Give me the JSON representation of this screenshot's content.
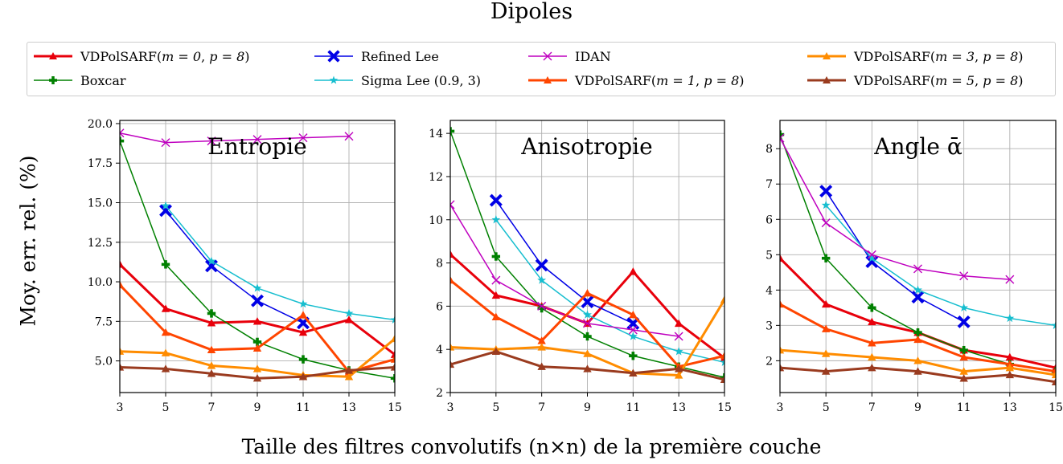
{
  "figure": {
    "title": "Dipoles",
    "ylabel": "Moy. err. rel. (%)",
    "xlabel": "Taille des filtres convolutifs (n×n) de la première couche"
  },
  "legend": [
    {
      "key": "vdp0",
      "label": "VDPolSARF(m = 0, p = 8)",
      "color": "#e8000b",
      "marker": "triangle",
      "width": 3
    },
    {
      "key": "boxcar",
      "label": "Boxcar",
      "color": "#008000",
      "marker": "plus",
      "width": 1.5
    },
    {
      "key": "refined",
      "label": "Refined Lee",
      "color": "#0000e6",
      "marker": "xfilled",
      "width": 1.5
    },
    {
      "key": "sigma",
      "label": "Sigma Lee (0.9, 3)",
      "color": "#17becf",
      "marker": "star",
      "width": 1.5
    },
    {
      "key": "idan",
      "label": "IDAN",
      "color": "#bf00bf",
      "marker": "x",
      "width": 1.5
    },
    {
      "key": "vdp1",
      "label": "VDPolSARF(m = 1, p = 8)",
      "color": "#ff4500",
      "marker": "triangle",
      "width": 3
    },
    {
      "key": "vdp3",
      "label": "VDPolSARF(m = 3, p = 8)",
      "color": "#ff8c00",
      "marker": "triangle",
      "width": 3
    },
    {
      "key": "vdp5",
      "label": "VDPolSARF(m = 5, p = 8)",
      "color": "#9a3b1f",
      "marker": "triangle",
      "width": 3
    }
  ],
  "chart_data": [
    {
      "type": "line",
      "title": "Entropie",
      "xlabel": "Taille des filtres convolutifs (n×n) de la première couche",
      "ylabel": "Moy. err. rel. (%)",
      "x": [
        3,
        5,
        7,
        9,
        11,
        13,
        15
      ],
      "xlim": [
        3,
        15
      ],
      "ylim": [
        3.0,
        20.2
      ],
      "yticks": [
        5.0,
        7.5,
        10.0,
        12.5,
        15.0,
        17.5,
        20.0
      ],
      "ytick_labels": [
        "5.0",
        "7.5",
        "10.0",
        "12.5",
        "15.0",
        "17.5",
        "20.0"
      ],
      "grid": true,
      "series": [
        {
          "name": "VDPolSARF(m = 0, p = 8)",
          "values": [
            11.1,
            8.3,
            7.4,
            7.5,
            6.8,
            7.6,
            5.4
          ]
        },
        {
          "name": "Boxcar",
          "values": [
            18.9,
            11.1,
            8.0,
            6.2,
            5.1,
            4.4,
            3.9
          ]
        },
        {
          "name": "Refined Lee",
          "values": [
            null,
            14.5,
            11.0,
            8.8,
            7.4,
            null,
            null
          ]
        },
        {
          "name": "Sigma Lee (0.9, 3)",
          "values": [
            null,
            14.8,
            11.3,
            9.6,
            8.6,
            8.0,
            7.6
          ]
        },
        {
          "name": "IDAN",
          "values": [
            19.4,
            18.8,
            18.9,
            19.0,
            19.1,
            19.2,
            null
          ]
        },
        {
          "name": "VDPolSARF(m = 1, p = 8)",
          "values": [
            9.8,
            6.8,
            5.7,
            5.8,
            7.9,
            4.3,
            5.1
          ]
        },
        {
          "name": "VDPolSARF(m = 3, p = 8)",
          "values": [
            5.6,
            5.5,
            4.7,
            4.5,
            4.1,
            4.0,
            6.4
          ]
        },
        {
          "name": "VDPolSARF(m = 5, p = 8)",
          "values": [
            4.6,
            4.5,
            4.2,
            3.9,
            4.0,
            4.4,
            4.6
          ]
        }
      ]
    },
    {
      "type": "line",
      "title": "Anisotropie",
      "x": [
        3,
        5,
        7,
        9,
        11,
        13,
        15
      ],
      "xlim": [
        3,
        15
      ],
      "ylim": [
        2.0,
        14.6
      ],
      "yticks": [
        2,
        4,
        6,
        8,
        10,
        12,
        14
      ],
      "ytick_labels": [
        "2",
        "4",
        "6",
        "8",
        "10",
        "12",
        "14"
      ],
      "grid": true,
      "series": [
        {
          "name": "VDPolSARF(m = 0, p = 8)",
          "values": [
            8.4,
            6.5,
            6.0,
            5.2,
            7.6,
            5.2,
            3.6
          ]
        },
        {
          "name": "Boxcar",
          "values": [
            14.1,
            8.3,
            5.9,
            4.6,
            3.7,
            3.2,
            2.7
          ]
        },
        {
          "name": "Refined Lee",
          "values": [
            null,
            10.9,
            7.9,
            6.2,
            5.2,
            null,
            null
          ]
        },
        {
          "name": "Sigma Lee (0.9, 3)",
          "values": [
            null,
            10.0,
            7.2,
            5.6,
            4.6,
            3.9,
            3.4
          ]
        },
        {
          "name": "IDAN",
          "values": [
            10.7,
            7.2,
            6.0,
            5.2,
            4.9,
            4.6,
            null
          ]
        },
        {
          "name": "VDPolSARF(m = 1, p = 8)",
          "values": [
            7.2,
            5.5,
            4.4,
            6.6,
            5.6,
            3.2,
            3.7
          ]
        },
        {
          "name": "VDPolSARF(m = 3, p = 8)",
          "values": [
            4.1,
            4.0,
            4.1,
            3.8,
            2.9,
            2.8,
            6.3
          ]
        },
        {
          "name": "VDPolSARF(m = 5, p = 8)",
          "values": [
            3.3,
            3.9,
            3.2,
            3.1,
            2.9,
            3.1,
            2.6
          ]
        }
      ]
    },
    {
      "type": "line",
      "title": "Angle ᾱ",
      "x": [
        3,
        5,
        7,
        9,
        11,
        13,
        15
      ],
      "xlim": [
        3,
        15
      ],
      "ylim": [
        1.1,
        8.8
      ],
      "yticks": [
        2,
        3,
        4,
        5,
        6,
        7,
        8
      ],
      "ytick_labels": [
        "2",
        "3",
        "4",
        "5",
        "6",
        "7",
        "8"
      ],
      "grid": true,
      "series": [
        {
          "name": "VDPolSARF(m = 0, p = 8)",
          "values": [
            4.9,
            3.6,
            3.1,
            2.8,
            2.3,
            2.1,
            1.8
          ]
        },
        {
          "name": "Boxcar",
          "values": [
            8.4,
            4.9,
            3.5,
            2.8,
            2.3,
            1.9,
            1.7
          ]
        },
        {
          "name": "Refined Lee",
          "values": [
            null,
            6.8,
            4.8,
            3.8,
            3.1,
            null,
            null
          ]
        },
        {
          "name": "Sigma Lee (0.9, 3)",
          "values": [
            null,
            6.4,
            4.9,
            4.0,
            3.5,
            3.2,
            3.0
          ]
        },
        {
          "name": "IDAN",
          "values": [
            8.3,
            5.9,
            5.0,
            4.6,
            4.4,
            4.3,
            null
          ]
        },
        {
          "name": "VDPolSARF(m = 1, p = 8)",
          "values": [
            3.6,
            2.9,
            2.5,
            2.6,
            2.1,
            1.9,
            1.7
          ]
        },
        {
          "name": "VDPolSARF(m = 3, p = 8)",
          "values": [
            2.3,
            2.2,
            2.1,
            2.0,
            1.7,
            1.8,
            1.6
          ]
        },
        {
          "name": "VDPolSARF(m = 5, p = 8)",
          "values": [
            1.8,
            1.7,
            1.8,
            1.7,
            1.5,
            1.6,
            1.4
          ]
        }
      ]
    }
  ]
}
